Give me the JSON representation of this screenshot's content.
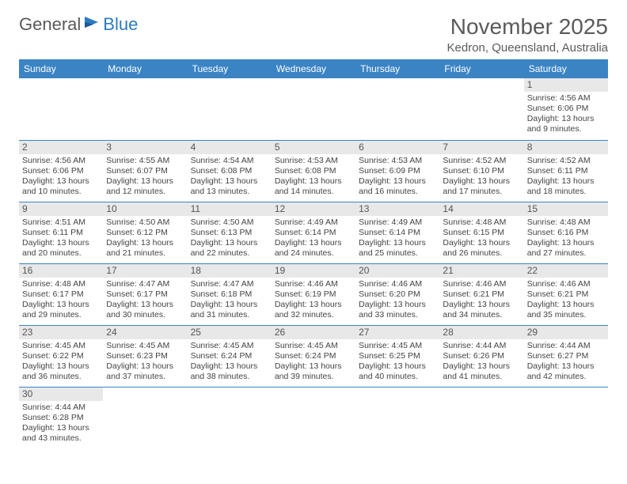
{
  "logo": {
    "word1": "General",
    "word2": "Blue"
  },
  "title": "November 2025",
  "location": "Kedron, Queensland, Australia",
  "colors": {
    "header_bg": "#3b84c4",
    "header_text": "#ffffff",
    "daynum_bg": "#e8e8e8",
    "border": "#3b84c4",
    "logo_gray": "#5a5a5a",
    "logo_blue": "#2b7bbf"
  },
  "weekdays": [
    "Sunday",
    "Monday",
    "Tuesday",
    "Wednesday",
    "Thursday",
    "Friday",
    "Saturday"
  ],
  "first_day_index": 6,
  "days_in_month": 30,
  "days": {
    "1": {
      "sunrise": "4:56 AM",
      "sunset": "6:06 PM",
      "daylight": "13 hours and 9 minutes."
    },
    "2": {
      "sunrise": "4:56 AM",
      "sunset": "6:06 PM",
      "daylight": "13 hours and 10 minutes."
    },
    "3": {
      "sunrise": "4:55 AM",
      "sunset": "6:07 PM",
      "daylight": "13 hours and 12 minutes."
    },
    "4": {
      "sunrise": "4:54 AM",
      "sunset": "6:08 PM",
      "daylight": "13 hours and 13 minutes."
    },
    "5": {
      "sunrise": "4:53 AM",
      "sunset": "6:08 PM",
      "daylight": "13 hours and 14 minutes."
    },
    "6": {
      "sunrise": "4:53 AM",
      "sunset": "6:09 PM",
      "daylight": "13 hours and 16 minutes."
    },
    "7": {
      "sunrise": "4:52 AM",
      "sunset": "6:10 PM",
      "daylight": "13 hours and 17 minutes."
    },
    "8": {
      "sunrise": "4:52 AM",
      "sunset": "6:11 PM",
      "daylight": "13 hours and 18 minutes."
    },
    "9": {
      "sunrise": "4:51 AM",
      "sunset": "6:11 PM",
      "daylight": "13 hours and 20 minutes."
    },
    "10": {
      "sunrise": "4:50 AM",
      "sunset": "6:12 PM",
      "daylight": "13 hours and 21 minutes."
    },
    "11": {
      "sunrise": "4:50 AM",
      "sunset": "6:13 PM",
      "daylight": "13 hours and 22 minutes."
    },
    "12": {
      "sunrise": "4:49 AM",
      "sunset": "6:14 PM",
      "daylight": "13 hours and 24 minutes."
    },
    "13": {
      "sunrise": "4:49 AM",
      "sunset": "6:14 PM",
      "daylight": "13 hours and 25 minutes."
    },
    "14": {
      "sunrise": "4:48 AM",
      "sunset": "6:15 PM",
      "daylight": "13 hours and 26 minutes."
    },
    "15": {
      "sunrise": "4:48 AM",
      "sunset": "6:16 PM",
      "daylight": "13 hours and 27 minutes."
    },
    "16": {
      "sunrise": "4:48 AM",
      "sunset": "6:17 PM",
      "daylight": "13 hours and 29 minutes."
    },
    "17": {
      "sunrise": "4:47 AM",
      "sunset": "6:17 PM",
      "daylight": "13 hours and 30 minutes."
    },
    "18": {
      "sunrise": "4:47 AM",
      "sunset": "6:18 PM",
      "daylight": "13 hours and 31 minutes."
    },
    "19": {
      "sunrise": "4:46 AM",
      "sunset": "6:19 PM",
      "daylight": "13 hours and 32 minutes."
    },
    "20": {
      "sunrise": "4:46 AM",
      "sunset": "6:20 PM",
      "daylight": "13 hours and 33 minutes."
    },
    "21": {
      "sunrise": "4:46 AM",
      "sunset": "6:21 PM",
      "daylight": "13 hours and 34 minutes."
    },
    "22": {
      "sunrise": "4:46 AM",
      "sunset": "6:21 PM",
      "daylight": "13 hours and 35 minutes."
    },
    "23": {
      "sunrise": "4:45 AM",
      "sunset": "6:22 PM",
      "daylight": "13 hours and 36 minutes."
    },
    "24": {
      "sunrise": "4:45 AM",
      "sunset": "6:23 PM",
      "daylight": "13 hours and 37 minutes."
    },
    "25": {
      "sunrise": "4:45 AM",
      "sunset": "6:24 PM",
      "daylight": "13 hours and 38 minutes."
    },
    "26": {
      "sunrise": "4:45 AM",
      "sunset": "6:24 PM",
      "daylight": "13 hours and 39 minutes."
    },
    "27": {
      "sunrise": "4:45 AM",
      "sunset": "6:25 PM",
      "daylight": "13 hours and 40 minutes."
    },
    "28": {
      "sunrise": "4:44 AM",
      "sunset": "6:26 PM",
      "daylight": "13 hours and 41 minutes."
    },
    "29": {
      "sunrise": "4:44 AM",
      "sunset": "6:27 PM",
      "daylight": "13 hours and 42 minutes."
    },
    "30": {
      "sunrise": "4:44 AM",
      "sunset": "6:28 PM",
      "daylight": "13 hours and 43 minutes."
    }
  },
  "labels": {
    "sunrise": "Sunrise:",
    "sunset": "Sunset:",
    "daylight": "Daylight:"
  }
}
